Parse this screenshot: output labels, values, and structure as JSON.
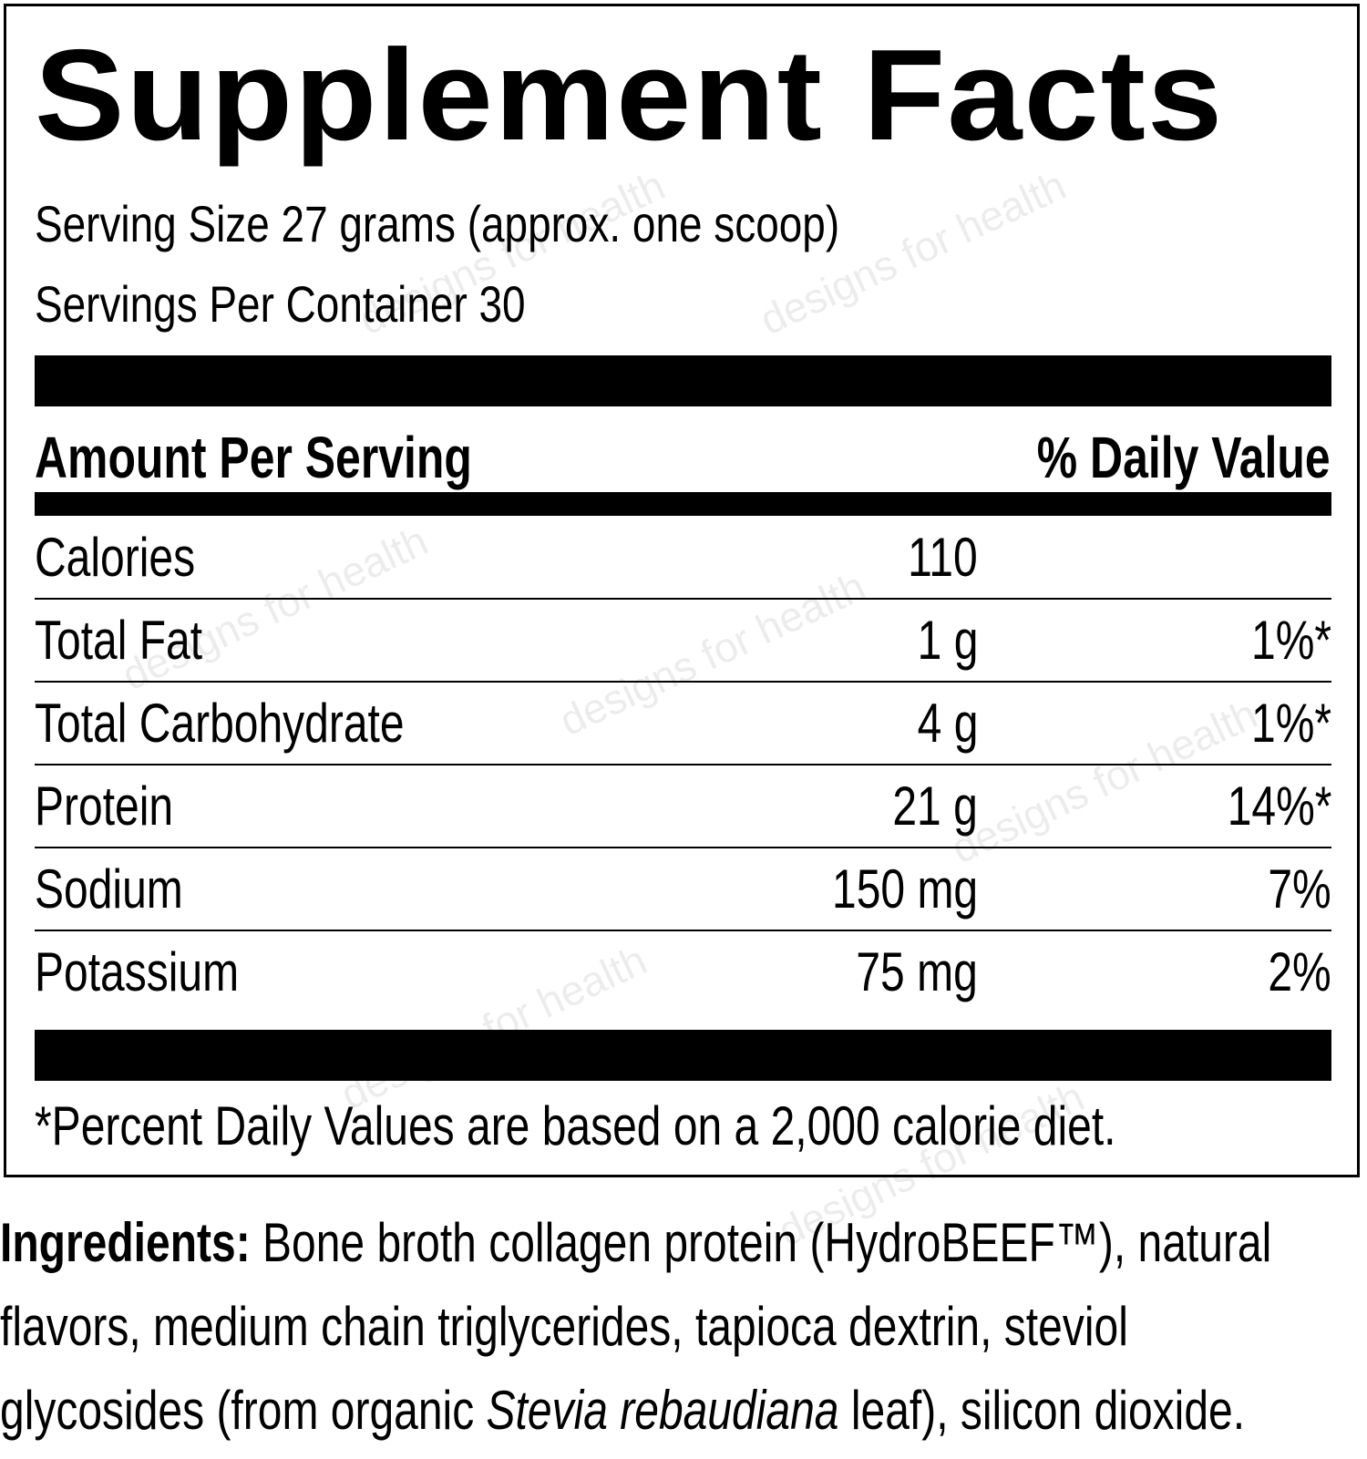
{
  "title": "Supplement Facts",
  "serving_size": "Serving Size 27 grams (approx. one scoop)",
  "servings_per_container": "Servings Per Container 30",
  "header": {
    "amount_label": "Amount Per Serving",
    "dv_label": "% Daily Value"
  },
  "rows": [
    {
      "name": "Calories",
      "amount": "110",
      "dv": ""
    },
    {
      "name": "Total Fat",
      "amount": "1 g",
      "dv": "1%*"
    },
    {
      "name": "Total Carbohydrate",
      "amount": "4 g",
      "dv": "1%*"
    },
    {
      "name": "Protein",
      "amount": "21 g",
      "dv": "14%*"
    },
    {
      "name": "Sodium",
      "amount": "150 mg",
      "dv": "7%"
    },
    {
      "name": "Potassium",
      "amount": "75 mg",
      "dv": "2%"
    }
  ],
  "footnote": "*Percent Daily Values are based on a 2,000 calorie diet.",
  "ingredients": {
    "label": "Ingredients:",
    "text_1": " Bone broth collagen protein (HydroBEEF™), natural flavors, medium chain triglycerides, tapioca dextrin, steviol glycosides (from organic ",
    "italic": "Stevia rebaudiana",
    "text_2": " leaf), silicon dioxide."
  },
  "watermark": "designs for health"
}
